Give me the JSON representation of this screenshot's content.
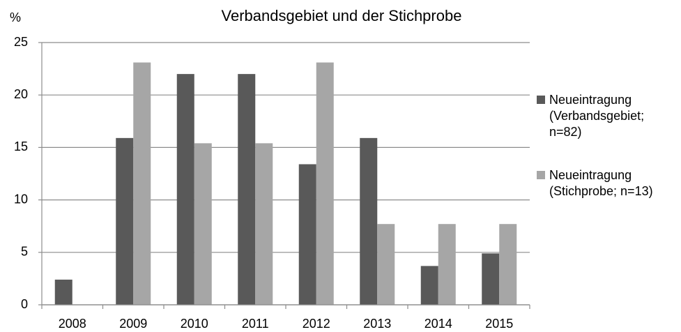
{
  "chart_data": {
    "type": "bar",
    "title": "Verbandsgebiet und der Stichprobe",
    "y_label": "%",
    "categories": [
      "2008",
      "2009",
      "2010",
      "2011",
      "2012",
      "2013",
      "2014",
      "2015"
    ],
    "series": [
      {
        "name": "Neueintragung (Verbandsgebiet; n=82)",
        "color": "#595959",
        "values": [
          2.4,
          15.9,
          22.0,
          22.0,
          13.4,
          15.9,
          3.7,
          4.9
        ]
      },
      {
        "name": "Neueintragung (Stichprobe; n=13)",
        "color": "#a6a6a6",
        "values": [
          0,
          23.1,
          15.4,
          15.4,
          23.1,
          7.7,
          7.7,
          7.7
        ]
      }
    ],
    "ylim": [
      0,
      25
    ],
    "yticks": [
      0,
      5,
      10,
      15,
      20,
      25
    ],
    "grid": true,
    "legend": "right"
  }
}
